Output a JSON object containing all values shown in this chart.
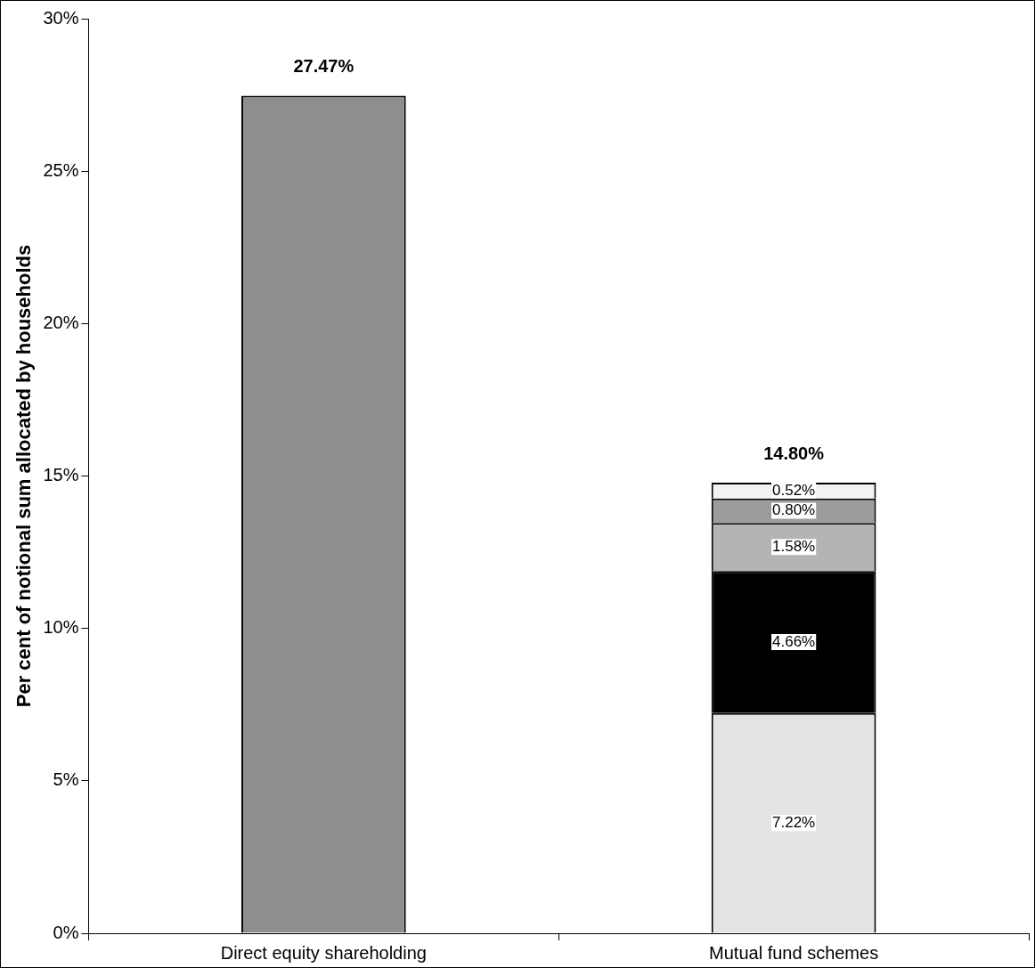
{
  "chart_data": {
    "type": "bar",
    "stacked": true,
    "ylabel": "Per cent of notional sum allocated by households",
    "categories": [
      "Direct equity shareholding",
      "Mutual fund schemes"
    ],
    "series": [
      {
        "color": "#8e8e8e",
        "values": [
          27.47,
          null
        ]
      },
      {
        "color": "#e4e4e4",
        "values": [
          null,
          7.22
        ],
        "value_labels": [
          null,
          "7.22%"
        ]
      },
      {
        "color": "#000000",
        "values": [
          null,
          4.66
        ],
        "value_labels": [
          null,
          "4.66%"
        ]
      },
      {
        "color": "#b4b4b4",
        "values": [
          null,
          1.58
        ],
        "value_labels": [
          null,
          "1.58%"
        ]
      },
      {
        "color": "#9c9c9c",
        "values": [
          null,
          0.8
        ],
        "value_labels": [
          null,
          "0.80%"
        ]
      },
      {
        "color": "#f2f2f2",
        "values": [
          null,
          0.52
        ],
        "value_labels": [
          null,
          "0.52%"
        ]
      }
    ],
    "totals": [
      "27.47%",
      "14.80%"
    ],
    "ylim": [
      0,
      30
    ],
    "yticks": [
      {
        "value": 0,
        "label": "0%"
      },
      {
        "value": 5,
        "label": "5%"
      },
      {
        "value": 10,
        "label": "10%"
      },
      {
        "value": 15,
        "label": "15%"
      },
      {
        "value": 20,
        "label": "20%"
      },
      {
        "value": 25,
        "label": "25%"
      },
      {
        "value": 30,
        "label": "30%"
      }
    ],
    "grid": false,
    "legend": false
  }
}
